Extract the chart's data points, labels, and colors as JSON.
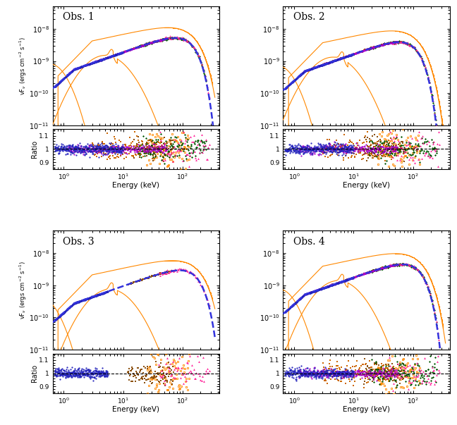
{
  "panels": [
    {
      "label": "Obs. 1",
      "obs_idx": 0,
      "has_purple": true,
      "has_green": true,
      "has_pink": true,
      "blue_max_keV": 10,
      "brown_min_keV": 15
    },
    {
      "label": "Obs. 2",
      "obs_idx": 1,
      "has_purple": true,
      "has_green": true,
      "has_pink": true,
      "blue_max_keV": 10,
      "brown_min_keV": 15
    },
    {
      "label": "Obs. 3",
      "obs_idx": 2,
      "has_purple": false,
      "has_green": false,
      "has_pink": true,
      "blue_max_keV": 5.5,
      "brown_min_keV": 12
    },
    {
      "label": "Obs. 4",
      "obs_idx": 3,
      "has_purple": true,
      "has_green": true,
      "has_pink": true,
      "blue_max_keV": 10,
      "brown_min_keV": 15
    }
  ],
  "colors": {
    "blue": "#2222bb",
    "purple": "#aa00cc",
    "green": "#005500",
    "brown": "#8B5010",
    "orange_brown": "#cc6600",
    "pink": "#ff2299",
    "orange": "#ff8800",
    "dashed_blue": "#3333dd"
  },
  "scalings": [
    1.0,
    0.88,
    0.5,
    0.93
  ],
  "kT_disk": [
    0.2,
    0.18,
    0.14,
    0.19
  ],
  "kT_comp": [
    130,
    100,
    155,
    115
  ],
  "xlim": [
    0.65,
    420
  ],
  "ylim_main_log": [
    -11.0,
    -7.3
  ],
  "ylim_ratio": [
    0.85,
    1.15
  ],
  "xlabel": "Energy (keV)",
  "ylabel_main": "vF$_{\\nu}$ (ergs cm$^{-2}$ s$^{-1}$)",
  "ylabel_ratio": "Ratio",
  "ratio_yticks": [
    0.9,
    1.0,
    1.1
  ],
  "ratio_ytick_labels": [
    "0.9",
    "1",
    "1.1"
  ]
}
